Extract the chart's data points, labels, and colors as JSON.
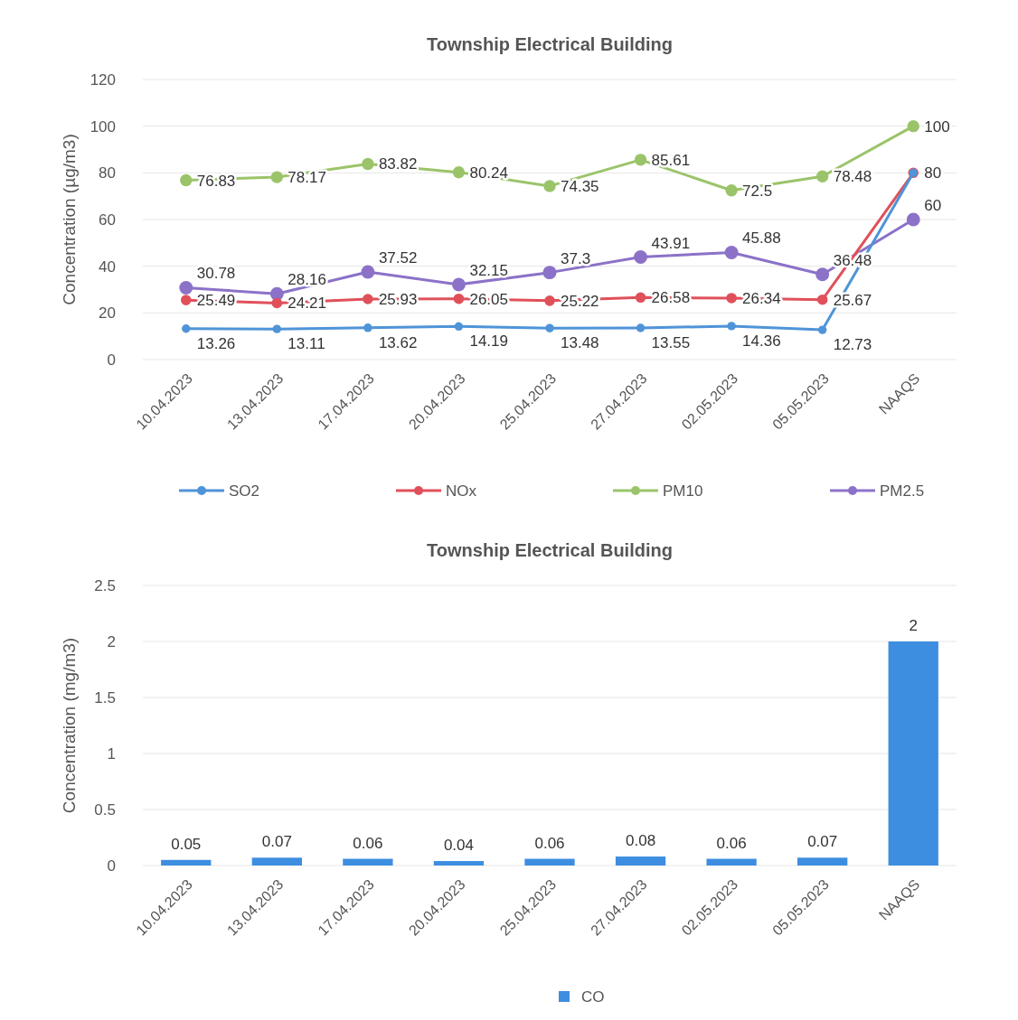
{
  "chart_data": [
    {
      "type": "line",
      "title": "Township Electrical Building",
      "ylabel": "Concentration (µg/m3)",
      "categories": [
        "10.04.2023",
        "13.04.2023",
        "17.04.2023",
        "20.04.2023",
        "25.04.2023",
        "27.04.2023",
        "02.05.2023",
        "05.05.2023",
        "NAAQS"
      ],
      "ylim": [
        0,
        120
      ],
      "yticks": [
        0,
        20,
        40,
        60,
        80,
        100,
        120
      ],
      "grid": "y",
      "legend": "bottom",
      "marker": "circle",
      "line_style": "solid",
      "series": [
        {
          "name": "SO2",
          "color": "#4f94d8",
          "values": [
            13.26,
            13.11,
            13.62,
            14.19,
            13.48,
            13.55,
            14.36,
            12.73,
            80
          ],
          "value_labels": [
            "13.26",
            "13.11",
            "13.62",
            "14.19",
            "13.48",
            "13.55",
            "14.36",
            "12.73",
            null
          ]
        },
        {
          "name": "NOx",
          "color": "#e0505a",
          "values": [
            25.49,
            24.21,
            25.93,
            26.05,
            25.22,
            26.58,
            26.34,
            25.67,
            80
          ],
          "value_labels": [
            "25.49",
            "24.21",
            "25.93",
            "26.05",
            "25.22",
            "26.58",
            "26.34",
            "25.67",
            "80"
          ]
        },
        {
          "name": "PM10",
          "color": "#9bc46a",
          "values": [
            76.83,
            78.17,
            83.82,
            80.24,
            74.35,
            85.61,
            72.5,
            78.48,
            100
          ],
          "value_labels": [
            "76.83",
            "78.17",
            "83.82",
            "80.24",
            "74.35",
            "85.61",
            "72.5",
            "78.48",
            "100"
          ]
        },
        {
          "name": "PM2.5",
          "color": "#8b72c8",
          "values": [
            30.78,
            28.16,
            37.52,
            32.15,
            37.3,
            43.91,
            45.88,
            36.48,
            60
          ],
          "value_labels": [
            "30.78",
            "28.16",
            "37.52",
            "32.15",
            "37.3",
            "43.91",
            "45.88",
            "36.48",
            "60"
          ]
        }
      ]
    },
    {
      "type": "bar",
      "title": "Township Electrical Building",
      "ylabel": "Concentration (mg/m3)",
      "categories": [
        "10.04.2023",
        "13.04.2023",
        "17.04.2023",
        "20.04.2023",
        "25.04.2023",
        "27.04.2023",
        "02.05.2023",
        "05.05.2023",
        "NAAQS"
      ],
      "ylim": [
        0,
        2.5
      ],
      "yticks": [
        0,
        0.5,
        1,
        1.5,
        2,
        2.5
      ],
      "grid": "y",
      "legend": "bottom",
      "data_labels": true,
      "series": [
        {
          "name": "CO",
          "color": "#3d8ee0",
          "values": [
            0.05,
            0.07,
            0.06,
            0.04,
            0.06,
            0.08,
            0.06,
            0.07,
            2
          ]
        }
      ]
    }
  ]
}
